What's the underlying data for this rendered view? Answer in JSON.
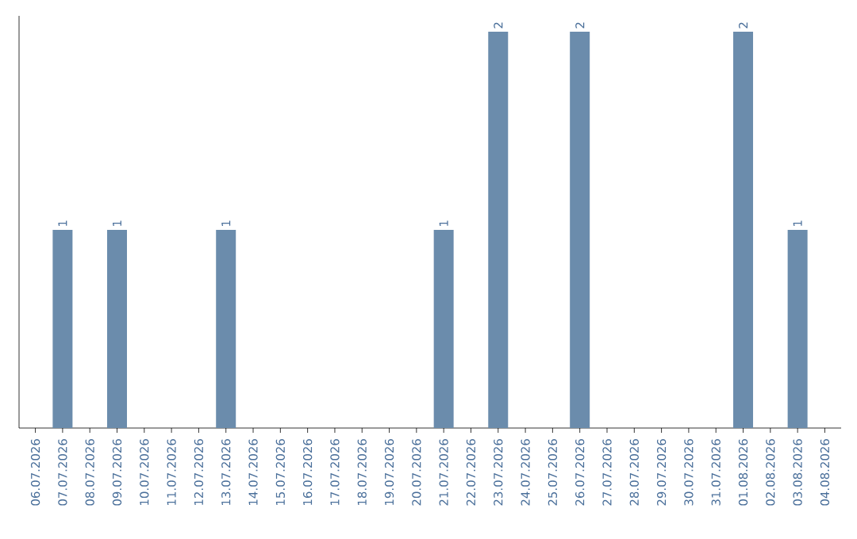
{
  "chart_data": {
    "type": "bar",
    "categories": [
      "06.07.2026",
      "07.07.2026",
      "08.07.2026",
      "09.07.2026",
      "10.07.2026",
      "11.07.2026",
      "12.07.2026",
      "13.07.2026",
      "14.07.2026",
      "15.07.2026",
      "16.07.2026",
      "17.07.2026",
      "18.07.2026",
      "19.07.2026",
      "20.07.2026",
      "21.07.2026",
      "22.07.2026",
      "23.07.2026",
      "24.07.2026",
      "25.07.2026",
      "26.07.2026",
      "27.07.2026",
      "28.07.2026",
      "29.07.2026",
      "30.07.2026",
      "31.07.2026",
      "01.08.2026",
      "02.08.2026",
      "03.08.2026",
      "04.08.2026"
    ],
    "values": [
      0,
      1,
      0,
      1,
      0,
      0,
      0,
      1,
      0,
      0,
      0,
      0,
      0,
      0,
      0,
      1,
      0,
      2,
      0,
      0,
      2,
      0,
      0,
      0,
      0,
      0,
      2,
      0,
      1,
      0
    ],
    "value_labels": [
      null,
      "1",
      null,
      "1",
      null,
      null,
      null,
      "1",
      null,
      null,
      null,
      null,
      null,
      null,
      null,
      "1",
      null,
      "2",
      null,
      null,
      "2",
      null,
      null,
      null,
      null,
      null,
      "2",
      null,
      "1",
      null
    ],
    "color": "#6b8cac",
    "tick_labels": "x"
  }
}
